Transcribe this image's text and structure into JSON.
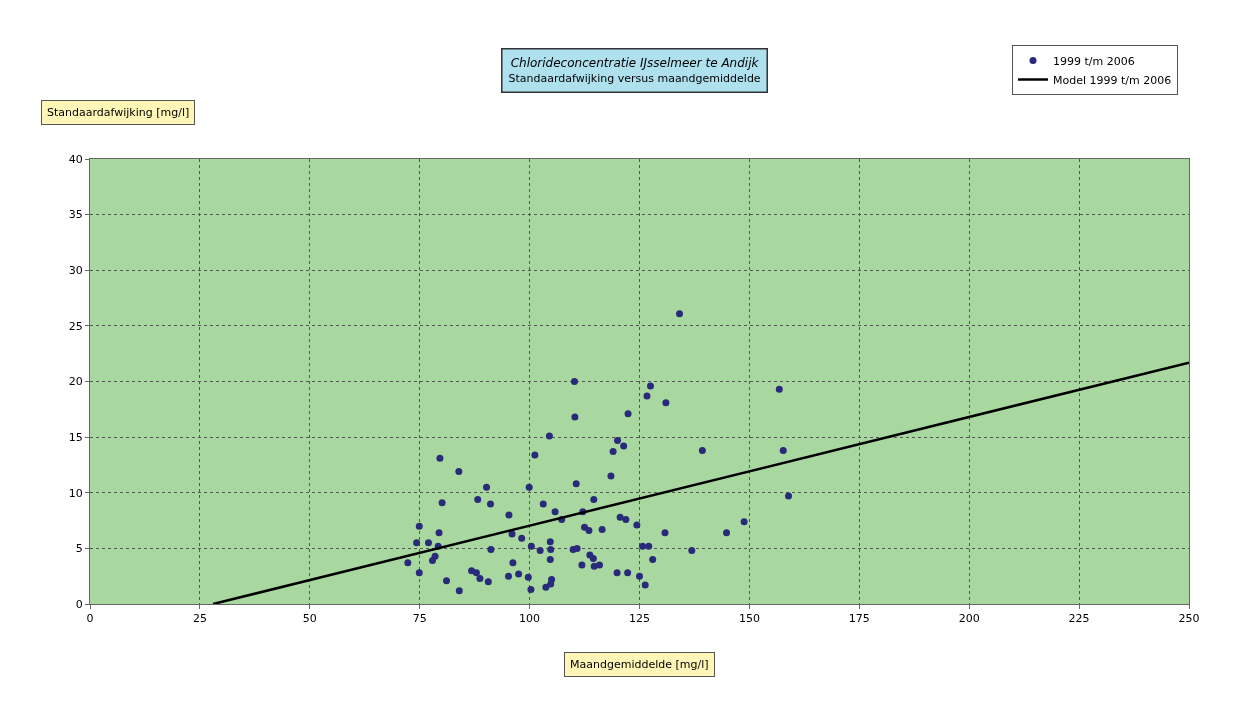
{
  "chart_data": {
    "type": "scatter",
    "title": "Chlorideconcentratie IJsselmeer te Andijk",
    "subtitle": "Standaardafwijking versus maandgemiddelde",
    "xlabel": "Maandgemiddelde [mg/l]",
    "ylabel": "Standaardafwijking [mg/l]",
    "xlim": [
      0,
      250
    ],
    "xticks": [
      0,
      25,
      50,
      75,
      100,
      125,
      150,
      175,
      200,
      225,
      250
    ],
    "ylim": [
      0,
      40
    ],
    "yticks": [
      0,
      5,
      10,
      15,
      20,
      25,
      30,
      35,
      40
    ],
    "grid": true,
    "legend": "top right",
    "marker": "circle",
    "series": [
      {
        "name": "1999 t/m 2006",
        "color": "#2a2a7a",
        "x": [
          110.2,
          110.3,
          104.5,
          79.6,
          101.2,
          83.9,
          90.2,
          99.9,
          110.6,
          80.1,
          88.2,
          91.1,
          103.1,
          105.8,
          95.3,
          107.3,
          74.9,
          79.4,
          96.0,
          98.2,
          74.3,
          77.0,
          79.2,
          91.2,
          100.4,
          104.7,
          102.4,
          104.8,
          109.9,
          78.5,
          72.3,
          77.9,
          104.7,
          74.9,
          86.8,
          87.9,
          88.7,
          90.6,
          81.1,
          84.0,
          95.2,
          96.2,
          97.5,
          99.7,
          100.3,
          103.7,
          104.8,
          105.0,
          134.1,
          127.5,
          156.8,
          126.7,
          131.0,
          122.4,
          120.0,
          121.4,
          119.0,
          139.3,
          157.7,
          118.5,
          158.9,
          114.6,
          112.1,
          120.6,
          121.9,
          124.4,
          112.5,
          113.5,
          116.5,
          130.8,
          144.8,
          148.8,
          110.8,
          125.7,
          127.1,
          136.9,
          113.7,
          114.5,
          111.9,
          114.7,
          115.9,
          128.0,
          119.9,
          122.3,
          125.0,
          126.3
        ],
        "values": [
          20.0,
          16.8,
          15.1,
          13.1,
          13.4,
          11.9,
          10.5,
          10.5,
          10.8,
          9.1,
          9.4,
          9.0,
          9.0,
          8.3,
          8.0,
          7.6,
          7.0,
          6.4,
          6.3,
          5.9,
          5.5,
          5.5,
          5.2,
          4.9,
          5.2,
          5.6,
          4.8,
          4.9,
          4.9,
          4.3,
          3.7,
          3.9,
          4.0,
          2.8,
          3.0,
          2.8,
          2.3,
          2.0,
          2.1,
          1.2,
          2.5,
          3.7,
          2.7,
          2.4,
          1.3,
          1.5,
          1.8,
          2.2,
          26.1,
          19.6,
          19.3,
          18.7,
          18.1,
          17.1,
          14.7,
          14.2,
          13.7,
          13.8,
          13.8,
          11.5,
          9.7,
          9.4,
          8.3,
          7.8,
          7.6,
          7.1,
          6.9,
          6.6,
          6.7,
          6.4,
          6.4,
          7.4,
          5.0,
          5.2,
          5.2,
          4.8,
          4.4,
          4.1,
          3.5,
          3.4,
          3.5,
          4.0,
          2.8,
          2.8,
          2.5,
          1.7
        ]
      },
      {
        "name": "Model 1999 t/m 2006",
        "type": "line",
        "color": "#000000",
        "marker": "none",
        "line_style": "solid",
        "x": [
          28,
          250
        ],
        "values": [
          0,
          21.7
        ]
      }
    ]
  }
}
